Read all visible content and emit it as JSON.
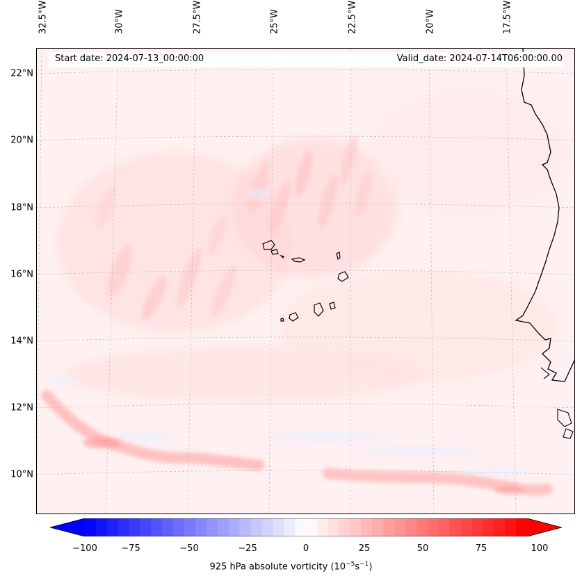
{
  "map": {
    "start_date": "Start date: 2024-07-13_00:00:00",
    "valid_date": "Valid_date: 2024-07-14T06:00:00.00",
    "lon_labels": [
      "32.5°W",
      "30°W",
      "27.5°W",
      "25°W",
      "22.5°W",
      "20°W",
      "17.5°W"
    ],
    "lat_labels": [
      "22°N",
      "20°N",
      "18°N",
      "16°N",
      "14°N",
      "12°N",
      "10°N"
    ],
    "colors": {
      "coast": "#000000",
      "grid": "#bdbdbd",
      "positive": "#ff0000",
      "negative": "#0000ff"
    }
  },
  "colorbar": {
    "ticks": [
      "−100",
      "−75",
      "−50",
      "−25",
      "0",
      "25",
      "50",
      "75",
      "100"
    ],
    "label_main": "925 hPa absolute vorticity (10",
    "label_exp1": "−5",
    "label_mid": "s",
    "label_exp2": "−1",
    "label_end": ")",
    "range": [
      -100,
      100
    ]
  }
}
